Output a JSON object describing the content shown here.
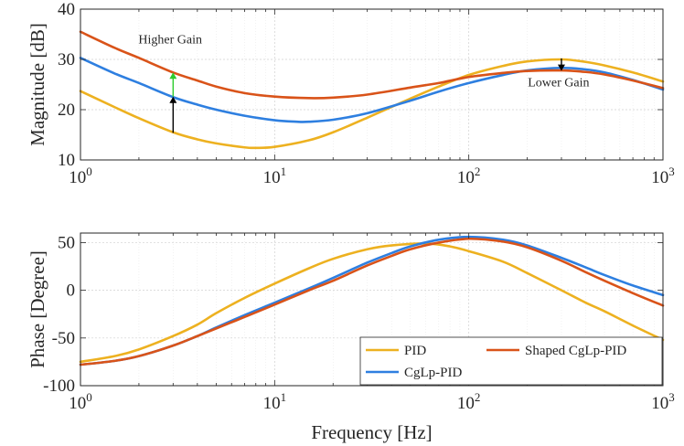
{
  "chart_data": [
    {
      "type": "line",
      "name": "magnitude",
      "ylabel": "Magnitude [dB]",
      "xlabel": "",
      "xscale": "log",
      "xlim": [
        1,
        1000
      ],
      "ylim": [
        10,
        40
      ],
      "yticks": [
        10,
        20,
        30,
        40
      ],
      "xticks": [
        {
          "base": "10",
          "exp": "0",
          "value": 1
        },
        {
          "base": "10",
          "exp": "1",
          "value": 10
        },
        {
          "base": "10",
          "exp": "2",
          "value": 100
        },
        {
          "base": "10",
          "exp": "3",
          "value": 1000
        }
      ],
      "grid": true,
      "series": [
        {
          "name": "PID",
          "color": "#EDB120",
          "x": [
            1,
            1.5,
            2,
            3,
            4,
            5,
            7,
            8,
            10,
            15,
            20,
            30,
            50,
            70,
            100,
            150,
            200,
            300,
            400,
            500,
            700,
            1000
          ],
          "y": [
            23.7,
            20.5,
            18.3,
            15.5,
            14.1,
            13.3,
            12.5,
            12.4,
            12.6,
            13.9,
            15.5,
            18.4,
            22.2,
            24.6,
            26.9,
            28.7,
            29.6,
            30.0,
            29.5,
            28.8,
            27.4,
            25.6
          ]
        },
        {
          "name": "CgLp-PID",
          "color": "#2E7FE0",
          "x": [
            1,
            1.5,
            2,
            3,
            4,
            5,
            7,
            10,
            13,
            15,
            20,
            30,
            50,
            70,
            100,
            150,
            200,
            300,
            400,
            500,
            700,
            1000
          ],
          "y": [
            30.3,
            27.2,
            25.3,
            22.5,
            21.0,
            20.0,
            18.8,
            17.9,
            17.6,
            17.6,
            18.0,
            19.3,
            21.8,
            23.6,
            25.3,
            26.9,
            27.8,
            28.3,
            28.0,
            27.4,
            25.9,
            24.0
          ]
        },
        {
          "name": "Shaped CgLp-PID",
          "color": "#D95319",
          "x": [
            1,
            1.5,
            2,
            3,
            4,
            5,
            7,
            10,
            15,
            20,
            30,
            50,
            70,
            100,
            150,
            200,
            300,
            400,
            500,
            700,
            1000
          ],
          "y": [
            35.5,
            32.3,
            30.3,
            27.4,
            25.8,
            24.6,
            23.3,
            22.6,
            22.3,
            22.4,
            23.0,
            24.4,
            25.3,
            26.5,
            27.3,
            27.7,
            27.8,
            27.5,
            27.0,
            25.8,
            24.3
          ]
        }
      ],
      "annotations": [
        {
          "text": "Higher Gain",
          "x": 2.9,
          "y": 33.2
        },
        {
          "text": "Lower Gain",
          "x": 290,
          "y": 24.6
        }
      ],
      "arrows": [
        {
          "color": "#000000",
          "x": 3,
          "y_from": 15.4,
          "y_to": 22.6
        },
        {
          "color": "#2ECC2E",
          "x": 3,
          "y_from": 22.6,
          "y_to": 27.4
        },
        {
          "color": "#000000",
          "x": 300,
          "y_from": 30.2,
          "y_to": 27.7
        }
      ]
    },
    {
      "type": "line",
      "name": "phase",
      "ylabel": "Phase [Degree]",
      "xlabel": "Frequency [Hz]",
      "xscale": "log",
      "xlim": [
        1,
        1000
      ],
      "ylim": [
        -100,
        60
      ],
      "yticks": [
        -100,
        -50,
        0,
        50
      ],
      "ytick_labels": [
        "-100",
        "-50",
        "0",
        "50"
      ],
      "xticks": [
        {
          "base": "10",
          "exp": "0",
          "value": 1
        },
        {
          "base": "10",
          "exp": "1",
          "value": 10
        },
        {
          "base": "10",
          "exp": "2",
          "value": 100
        },
        {
          "base": "10",
          "exp": "3",
          "value": 1000
        }
      ],
      "grid": true,
      "legend": {
        "placement": "bottom-right",
        "columns": 2
      },
      "series": [
        {
          "name": "PID",
          "color": "#EDB120",
          "x": [
            1,
            1.5,
            2,
            3,
            4,
            5,
            7,
            10,
            15,
            20,
            30,
            40,
            60,
            80,
            100,
            150,
            200,
            300,
            400,
            500,
            700,
            1000
          ],
          "y": [
            -75,
            -69,
            -62,
            -48,
            -36,
            -24,
            -8,
            7,
            23,
            33,
            43,
            47,
            49,
            46,
            41,
            30,
            18,
            0,
            -13,
            -22,
            -37,
            -52
          ]
        },
        {
          "name": "CgLp-PID",
          "color": "#2E7FE0",
          "x": [
            1,
            1.5,
            2,
            3,
            4,
            5,
            7,
            10,
            15,
            20,
            30,
            40,
            50,
            70,
            100,
            150,
            200,
            300,
            400,
            500,
            700,
            1000
          ],
          "y": [
            -78,
            -74,
            -69,
            -58,
            -48,
            -39,
            -26,
            -13,
            2,
            13,
            29,
            39,
            46,
            53,
            56,
            53,
            47,
            34,
            24,
            16,
            5,
            -5
          ]
        },
        {
          "name": "Shaped CgLp-PID",
          "color": "#D95319",
          "x": [
            1,
            1.5,
            2,
            3,
            4,
            5,
            7,
            10,
            15,
            20,
            30,
            40,
            50,
            70,
            100,
            150,
            200,
            300,
            400,
            500,
            700,
            1000
          ],
          "y": [
            -78,
            -74,
            -69,
            -58,
            -48,
            -40,
            -28,
            -15,
            0,
            10,
            26,
            36,
            43,
            50,
            54,
            51,
            45,
            31,
            19,
            10,
            -3,
            -16
          ]
        }
      ]
    }
  ]
}
